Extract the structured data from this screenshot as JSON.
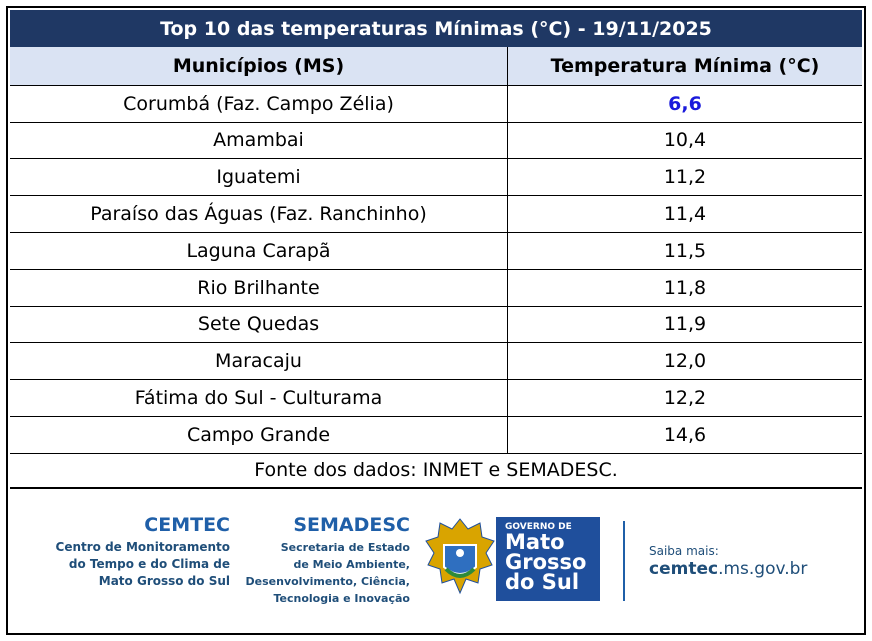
{
  "header": {
    "title": "Top 10 das temperaturas Mínimas (°C) - 19/11/2025"
  },
  "table": {
    "columns": [
      "Municípios (MS)",
      "Temperatura Mínima (°C)"
    ],
    "rows": [
      [
        "Corumbá (Faz. Campo Zélia)",
        "6,6"
      ],
      [
        "Amambai",
        "10,4"
      ],
      [
        "Iguatemi",
        "11,2"
      ],
      [
        "Paraíso das Águas (Faz. Ranchinho)",
        "11,4"
      ],
      [
        "Laguna Carapã",
        "11,5"
      ],
      [
        "Rio Brilhante",
        "11,8"
      ],
      [
        "Sete Quedas",
        "11,9"
      ],
      [
        "Maracaju",
        "12,0"
      ],
      [
        "Fátima do Sul - Culturama",
        "12,2"
      ],
      [
        "Campo Grande",
        "14,6"
      ]
    ],
    "highlight_row": 0,
    "highlight_color": "#1a1adb",
    "source": "Fonte dos dados: INMET e SEMADESC."
  },
  "logos": {
    "cemtec": {
      "name": "CEMTEC",
      "lines": [
        "Centro de Monitoramento",
        "do Tempo e do Clima de",
        "Mato Grosso do Sul"
      ]
    },
    "semadesc": {
      "name": "SEMADESC",
      "lines": [
        "Secretaria de Estado",
        "de Meio Ambiente,",
        "Desenvolvimento, Ciência,",
        "Tecnologia e Inovação"
      ]
    },
    "governo": {
      "lines": [
        "GOVERNO DE",
        "Mato",
        "Grosso",
        "do Sul"
      ]
    },
    "site": {
      "label": "Saiba mais:",
      "bold": "cemtec",
      "rest": ".ms.gov.br"
    }
  }
}
